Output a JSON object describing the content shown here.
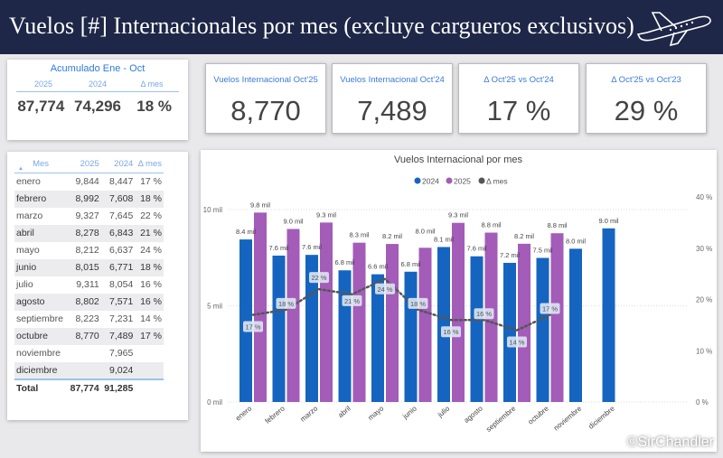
{
  "title": "Vuelos [#] Internacionales por mes (excluye cargueros exclusivos)",
  "icons": {
    "title": "airplane-icon"
  },
  "acumulado": {
    "title": "Acumulado Ene - Oct",
    "headers": [
      "2025",
      "2024",
      "Δ mes"
    ],
    "values": [
      "87,774",
      "74,296",
      "18 %"
    ]
  },
  "kpis": [
    {
      "label": "Vuelos Internacional Oct'25",
      "value": "8,770"
    },
    {
      "label": "Vuelos Internacional Oct'24",
      "value": "7,489"
    },
    {
      "label": "Δ Oct'25 vs Oct'24",
      "value": "17 %"
    },
    {
      "label": "Δ Oct'25 vs Oct'23",
      "value": "29 %"
    }
  ],
  "table": {
    "headers": [
      "Mes",
      "2025",
      "2024",
      "Δ mes"
    ],
    "sort": "ascending on Mes",
    "rows": [
      [
        "enero",
        "9,844",
        "8,447",
        "17 %"
      ],
      [
        "febrero",
        "8,992",
        "7,608",
        "18 %"
      ],
      [
        "marzo",
        "9,327",
        "7,645",
        "22 %"
      ],
      [
        "abril",
        "8,278",
        "6,843",
        "21 %"
      ],
      [
        "mayo",
        "8,212",
        "6,637",
        "24 %"
      ],
      [
        "junio",
        "8,015",
        "6,771",
        "18 %"
      ],
      [
        "julio",
        "9,311",
        "8,054",
        "16 %"
      ],
      [
        "agosto",
        "8,802",
        "7,571",
        "16 %"
      ],
      [
        "septiembre",
        "8,223",
        "7,231",
        "14 %"
      ],
      [
        "octubre",
        "8,770",
        "7,489",
        "17 %"
      ],
      [
        "noviembre",
        "",
        "7,965",
        ""
      ],
      [
        "diciembre",
        "",
        "9,024",
        ""
      ]
    ],
    "total": [
      "Total",
      "87,774",
      "91,285",
      ""
    ]
  },
  "chart_data": {
    "type": "bar",
    "title": "Vuelos Internacional por mes",
    "categories": [
      "enero",
      "febrero",
      "marzo",
      "abril",
      "mayo",
      "junio",
      "julio",
      "agosto",
      "septiembre",
      "octubre",
      "noviembre",
      "diciembre"
    ],
    "series": [
      {
        "name": "2024",
        "type": "bar",
        "color": "#1565c0",
        "values": [
          8.447,
          7.608,
          7.645,
          6.843,
          6.637,
          6.771,
          8.054,
          7.571,
          7.231,
          7.489,
          7.965,
          9.024
        ],
        "labels": [
          "8.4 mil",
          "7.6 mil",
          "7.6 mil",
          "6.8 mil",
          "6.6 mil",
          "6.8 mil",
          "8.1 mil",
          "7.6 mil",
          "7.2 mil",
          "7.5 mil",
          "8.0 mil",
          "9.0 mil"
        ]
      },
      {
        "name": "2025",
        "type": "bar",
        "color": "#a35cb8",
        "values": [
          9.844,
          8.992,
          9.327,
          8.278,
          8.212,
          8.015,
          9.311,
          8.802,
          8.223,
          8.77,
          null,
          null
        ],
        "labels": [
          "9.8 mil",
          "9.0 mil",
          "9.3 mil",
          "8.3 mil",
          "8.2 mil",
          "8.0 mil",
          "9.3 mil",
          "8.8 mil",
          "8.2 mil",
          "8.8 mil",
          "",
          ""
        ]
      },
      {
        "name": "Δ mes",
        "type": "line",
        "axis": "right",
        "color": "#555555",
        "values": [
          17,
          18,
          22,
          21,
          24,
          18,
          16,
          16,
          14,
          17,
          null,
          null
        ],
        "labels": [
          "17 %",
          "18 %",
          "22 %",
          "21 %",
          "24 %",
          "18 %",
          "16 %",
          "16 %",
          "14 %",
          "17 %",
          "",
          ""
        ]
      }
    ],
    "yleft": {
      "ticks": [
        "0 mil",
        "5 mil",
        "10 mil"
      ],
      "range": [
        0,
        10
      ]
    },
    "yright": {
      "ticks": [
        "0 %",
        "10 %",
        "20 %",
        "30 %",
        "40 %"
      ],
      "range": [
        0,
        40
      ]
    },
    "legend": "top-center",
    "grid": true
  },
  "watermark": "©SirChandler"
}
